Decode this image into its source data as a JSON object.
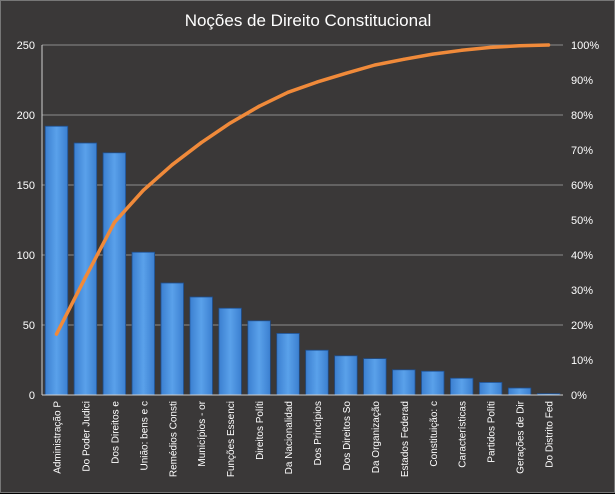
{
  "chart_data": {
    "type": "bar",
    "title": "Noções de Direito Constitucional",
    "categories": [
      "Administração P",
      "Do Poder Judici",
      "Dos Direitos e",
      "União: bens e c",
      "Remédios Consti",
      "Municípios - or",
      "Funções Essenci",
      "Direitos Políti",
      "Da Nacionalidad",
      "Dos Princípios",
      "Dos Direitos So",
      "Da Organização",
      "Estados Federad",
      "Constituição: c",
      "Características",
      "Partidos Políti",
      "Gerações de Dir",
      "Do Distrito Fed"
    ],
    "series": [
      {
        "type": "bar",
        "values": [
          192,
          180,
          173,
          102,
          80,
          70,
          62,
          53,
          44,
          32,
          28,
          26,
          18,
          17,
          12,
          9,
          5,
          1
        ]
      },
      {
        "type": "line",
        "axis": "right",
        "values": [
          17.4,
          33.6,
          49.3,
          58.5,
          65.8,
          72.1,
          77.7,
          82.5,
          86.5,
          89.4,
          91.9,
          94.3,
          95.9,
          97.4,
          98.5,
          99.3,
          99.8,
          100
        ]
      }
    ],
    "ylim": [
      0,
      250
    ],
    "y_ticks": [
      "0",
      "50",
      "100",
      "150",
      "200",
      "250"
    ],
    "y2lim": [
      0,
      100
    ],
    "y2_ticks": [
      "0%",
      "10%",
      "20%",
      "30%",
      "40%",
      "50%",
      "60%",
      "70%",
      "80%",
      "90%",
      "100%"
    ],
    "grid": true,
    "colors": {
      "background": "#3a3838",
      "bar": "#4a90d9",
      "bar_edge": "#1f4e8c",
      "line": "#f08a3a",
      "grid": "#8c8c8c",
      "text": "#ffffff"
    }
  }
}
